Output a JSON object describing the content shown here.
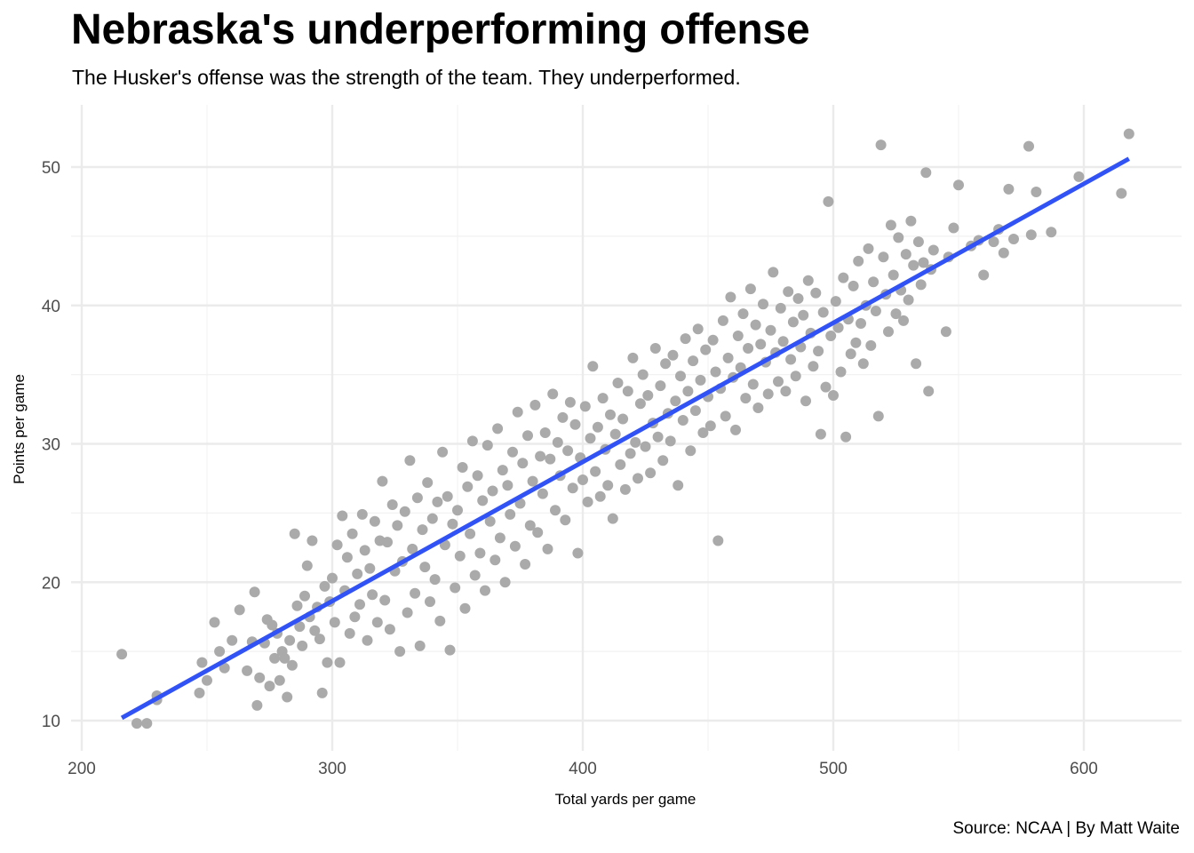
{
  "chart_data": {
    "type": "scatter",
    "title": "Nebraska's underperforming offense",
    "subtitle": "The Husker's offense was the strength of the team. They underperformed.",
    "xlabel": "Total yards per game",
    "ylabel": "Points per game",
    "caption": "Source: NCAA | By Matt Waite",
    "xlim": [
      200,
      640
    ],
    "ylim": [
      8,
      54
    ],
    "x_ticks": [
      200,
      300,
      400,
      500,
      600
    ],
    "y_ticks": [
      10,
      20,
      30,
      40,
      50
    ],
    "x_tick_labels": [
      "200",
      "300",
      "400",
      "500",
      "600"
    ],
    "y_tick_labels": [
      "10",
      "20",
      "30",
      "40",
      "50"
    ],
    "grid": true,
    "point_color": "#AAAAAA",
    "line_color": "#3152F5",
    "trend_line": {
      "x": [
        216,
        618
      ],
      "y": [
        10.2,
        50.6
      ]
    },
    "points": [
      [
        216,
        14.8
      ],
      [
        222,
        9.8
      ],
      [
        226,
        9.8
      ],
      [
        230,
        11.8
      ],
      [
        230,
        11.5
      ],
      [
        247,
        12.0
      ],
      [
        248,
        14.2
      ],
      [
        250,
        12.9
      ],
      [
        253,
        17.1
      ],
      [
        255,
        15.0
      ],
      [
        257,
        13.8
      ],
      [
        260,
        15.8
      ],
      [
        263,
        18.0
      ],
      [
        266,
        13.6
      ],
      [
        268,
        15.7
      ],
      [
        269,
        19.3
      ],
      [
        270,
        11.1
      ],
      [
        271,
        13.1
      ],
      [
        273,
        15.6
      ],
      [
        274,
        17.3
      ],
      [
        275,
        12.5
      ],
      [
        276,
        16.9
      ],
      [
        277,
        14.5
      ],
      [
        278,
        16.3
      ],
      [
        279,
        12.9
      ],
      [
        280,
        15.0
      ],
      [
        281,
        14.5
      ],
      [
        282,
        11.7
      ],
      [
        283,
        15.8
      ],
      [
        284,
        14.0
      ],
      [
        285,
        23.5
      ],
      [
        286,
        18.3
      ],
      [
        287,
        16.8
      ],
      [
        288,
        15.4
      ],
      [
        289,
        19.0
      ],
      [
        290,
        21.2
      ],
      [
        291,
        17.5
      ],
      [
        292,
        23.0
      ],
      [
        293,
        16.5
      ],
      [
        294,
        18.2
      ],
      [
        295,
        15.9
      ],
      [
        296,
        12.0
      ],
      [
        297,
        19.7
      ],
      [
        298,
        14.2
      ],
      [
        299,
        18.6
      ],
      [
        300,
        20.3
      ],
      [
        301,
        17.1
      ],
      [
        302,
        22.7
      ],
      [
        303,
        14.2
      ],
      [
        304,
        24.8
      ],
      [
        305,
        19.4
      ],
      [
        306,
        21.8
      ],
      [
        307,
        16.3
      ],
      [
        308,
        23.5
      ],
      [
        309,
        17.5
      ],
      [
        310,
        20.6
      ],
      [
        311,
        18.4
      ],
      [
        312,
        24.9
      ],
      [
        313,
        22.3
      ],
      [
        314,
        15.8
      ],
      [
        315,
        21.0
      ],
      [
        316,
        19.1
      ],
      [
        317,
        24.4
      ],
      [
        318,
        17.1
      ],
      [
        319,
        23.0
      ],
      [
        320,
        27.3
      ],
      [
        321,
        18.7
      ],
      [
        322,
        22.9
      ],
      [
        323,
        16.6
      ],
      [
        324,
        25.6
      ],
      [
        325,
        20.8
      ],
      [
        326,
        24.1
      ],
      [
        327,
        15.0
      ],
      [
        328,
        21.5
      ],
      [
        329,
        25.1
      ],
      [
        330,
        17.8
      ],
      [
        331,
        28.8
      ],
      [
        332,
        22.4
      ],
      [
        333,
        19.2
      ],
      [
        334,
        26.1
      ],
      [
        335,
        15.4
      ],
      [
        336,
        23.8
      ],
      [
        337,
        21.1
      ],
      [
        338,
        27.2
      ],
      [
        339,
        18.6
      ],
      [
        340,
        24.6
      ],
      [
        341,
        20.2
      ],
      [
        342,
        25.8
      ],
      [
        343,
        17.2
      ],
      [
        344,
        29.4
      ],
      [
        345,
        22.7
      ],
      [
        346,
        26.2
      ],
      [
        347,
        15.1
      ],
      [
        348,
        24.2
      ],
      [
        349,
        19.6
      ],
      [
        350,
        25.2
      ],
      [
        351,
        21.9
      ],
      [
        352,
        28.3
      ],
      [
        353,
        18.1
      ],
      [
        354,
        26.9
      ],
      [
        355,
        23.5
      ],
      [
        356,
        30.2
      ],
      [
        357,
        20.5
      ],
      [
        358,
        27.7
      ],
      [
        359,
        22.1
      ],
      [
        360,
        25.9
      ],
      [
        361,
        19.4
      ],
      [
        362,
        29.9
      ],
      [
        363,
        24.4
      ],
      [
        364,
        26.6
      ],
      [
        365,
        21.6
      ],
      [
        366,
        31.1
      ],
      [
        367,
        23.2
      ],
      [
        368,
        28.1
      ],
      [
        369,
        20.0
      ],
      [
        370,
        27.0
      ],
      [
        371,
        24.9
      ],
      [
        372,
        29.4
      ],
      [
        373,
        22.6
      ],
      [
        374,
        32.3
      ],
      [
        375,
        25.7
      ],
      [
        376,
        28.6
      ],
      [
        377,
        21.3
      ],
      [
        378,
        30.6
      ],
      [
        379,
        24.1
      ],
      [
        380,
        27.3
      ],
      [
        381,
        32.8
      ],
      [
        382,
        23.6
      ],
      [
        383,
        29.1
      ],
      [
        384,
        26.4
      ],
      [
        385,
        30.8
      ],
      [
        386,
        22.4
      ],
      [
        387,
        28.9
      ],
      [
        388,
        33.6
      ],
      [
        389,
        25.2
      ],
      [
        390,
        30.1
      ],
      [
        391,
        27.7
      ],
      [
        392,
        31.9
      ],
      [
        393,
        24.5
      ],
      [
        394,
        29.5
      ],
      [
        395,
        33.0
      ],
      [
        396,
        26.8
      ],
      [
        397,
        31.4
      ],
      [
        398,
        22.1
      ],
      [
        399,
        29.0
      ],
      [
        400,
        27.4
      ],
      [
        401,
        32.7
      ],
      [
        402,
        25.8
      ],
      [
        403,
        30.4
      ],
      [
        404,
        35.6
      ],
      [
        405,
        28.0
      ],
      [
        406,
        31.2
      ],
      [
        407,
        26.2
      ],
      [
        408,
        33.3
      ],
      [
        409,
        29.6
      ],
      [
        410,
        27.0
      ],
      [
        411,
        32.1
      ],
      [
        412,
        24.6
      ],
      [
        413,
        30.7
      ],
      [
        414,
        34.4
      ],
      [
        415,
        28.5
      ],
      [
        416,
        31.8
      ],
      [
        417,
        26.7
      ],
      [
        418,
        33.8
      ],
      [
        419,
        29.3
      ],
      [
        420,
        36.2
      ],
      [
        421,
        30.1
      ],
      [
        422,
        27.5
      ],
      [
        423,
        32.9
      ],
      [
        424,
        35.0
      ],
      [
        425,
        29.8
      ],
      [
        426,
        33.5
      ],
      [
        427,
        27.9
      ],
      [
        428,
        31.5
      ],
      [
        429,
        36.9
      ],
      [
        430,
        30.5
      ],
      [
        431,
        34.2
      ],
      [
        432,
        28.8
      ],
      [
        433,
        35.8
      ],
      [
        434,
        32.2
      ],
      [
        435,
        30.2
      ],
      [
        436,
        36.4
      ],
      [
        437,
        33.1
      ],
      [
        438,
        27.0
      ],
      [
        439,
        34.9
      ],
      [
        440,
        31.7
      ],
      [
        441,
        37.6
      ],
      [
        442,
        33.8
      ],
      [
        443,
        29.5
      ],
      [
        444,
        36.0
      ],
      [
        445,
        32.4
      ],
      [
        446,
        38.3
      ],
      [
        447,
        34.6
      ],
      [
        448,
        30.8
      ],
      [
        449,
        36.8
      ],
      [
        450,
        33.4
      ],
      [
        451,
        31.3
      ],
      [
        452,
        37.5
      ],
      [
        453,
        35.2
      ],
      [
        454,
        23.0
      ],
      [
        455,
        34.0
      ],
      [
        456,
        38.9
      ],
      [
        457,
        32.0
      ],
      [
        458,
        36.2
      ],
      [
        459,
        40.6
      ],
      [
        460,
        34.8
      ],
      [
        461,
        31.0
      ],
      [
        462,
        37.8
      ],
      [
        463,
        35.5
      ],
      [
        464,
        39.4
      ],
      [
        465,
        33.3
      ],
      [
        466,
        36.9
      ],
      [
        467,
        41.2
      ],
      [
        468,
        34.3
      ],
      [
        469,
        38.6
      ],
      [
        470,
        32.6
      ],
      [
        471,
        37.2
      ],
      [
        472,
        40.1
      ],
      [
        473,
        35.9
      ],
      [
        474,
        33.6
      ],
      [
        475,
        38.2
      ],
      [
        476,
        42.4
      ],
      [
        477,
        36.6
      ],
      [
        478,
        34.5
      ],
      [
        479,
        39.8
      ],
      [
        480,
        37.4
      ],
      [
        481,
        33.8
      ],
      [
        482,
        41.0
      ],
      [
        483,
        36.1
      ],
      [
        484,
        38.8
      ],
      [
        485,
        34.9
      ],
      [
        486,
        40.5
      ],
      [
        487,
        37.0
      ],
      [
        488,
        39.3
      ],
      [
        489,
        33.1
      ],
      [
        490,
        41.8
      ],
      [
        491,
        38.0
      ],
      [
        492,
        35.6
      ],
      [
        493,
        40.9
      ],
      [
        494,
        36.7
      ],
      [
        495,
        30.7
      ],
      [
        496,
        39.5
      ],
      [
        497,
        34.1
      ],
      [
        498,
        47.5
      ],
      [
        499,
        37.8
      ],
      [
        500,
        33.5
      ],
      [
        501,
        40.3
      ],
      [
        502,
        38.4
      ],
      [
        503,
        35.2
      ],
      [
        504,
        42.0
      ],
      [
        505,
        30.5
      ],
      [
        506,
        39.0
      ],
      [
        507,
        36.5
      ],
      [
        508,
        41.4
      ],
      [
        509,
        37.3
      ],
      [
        510,
        43.2
      ],
      [
        511,
        38.7
      ],
      [
        512,
        35.8
      ],
      [
        513,
        40.0
      ],
      [
        514,
        44.1
      ],
      [
        515,
        37.1
      ],
      [
        516,
        41.7
      ],
      [
        517,
        39.6
      ],
      [
        518,
        32.0
      ],
      [
        519,
        51.6
      ],
      [
        520,
        43.5
      ],
      [
        521,
        40.8
      ],
      [
        522,
        38.1
      ],
      [
        523,
        45.8
      ],
      [
        524,
        42.2
      ],
      [
        525,
        39.4
      ],
      [
        526,
        44.9
      ],
      [
        527,
        41.1
      ],
      [
        528,
        38.9
      ],
      [
        529,
        43.7
      ],
      [
        530,
        40.4
      ],
      [
        531,
        46.1
      ],
      [
        532,
        42.9
      ],
      [
        533,
        35.8
      ],
      [
        534,
        44.6
      ],
      [
        535,
        41.5
      ],
      [
        536,
        43.1
      ],
      [
        537,
        49.6
      ],
      [
        538,
        33.8
      ],
      [
        539,
        42.6
      ],
      [
        540,
        44.0
      ],
      [
        545,
        38.1
      ],
      [
        546,
        43.5
      ],
      [
        548,
        45.6
      ],
      [
        550,
        48.7
      ],
      [
        555,
        44.3
      ],
      [
        558,
        44.7
      ],
      [
        560,
        42.2
      ],
      [
        564,
        44.6
      ],
      [
        566,
        45.5
      ],
      [
        568,
        43.8
      ],
      [
        570,
        48.4
      ],
      [
        572,
        44.8
      ],
      [
        578,
        51.5
      ],
      [
        579,
        45.1
      ],
      [
        581,
        48.2
      ],
      [
        587,
        45.3
      ],
      [
        598,
        49.3
      ],
      [
        615,
        48.1
      ],
      [
        618,
        52.4
      ]
    ]
  }
}
